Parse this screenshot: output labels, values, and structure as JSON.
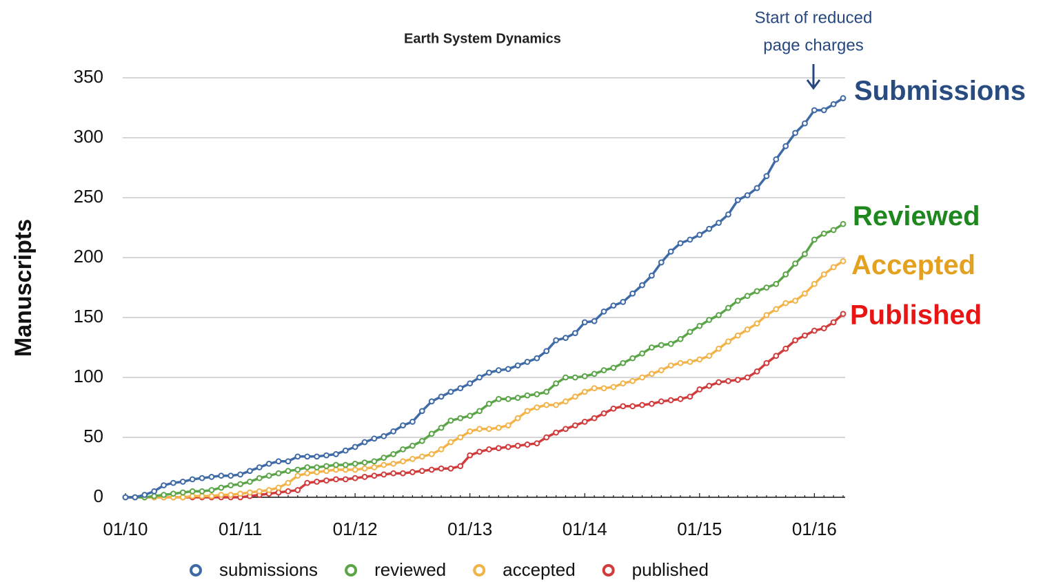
{
  "chart_data": {
    "type": "line",
    "title": "Earth System Dynamics",
    "y_label": "Manuscripts",
    "annotation": [
      "Start of reduced",
      "page charges"
    ],
    "annotation_color": "#27487e",
    "categories": [
      "01/10",
      null,
      null,
      null,
      null,
      null,
      null,
      null,
      null,
      null,
      null,
      null,
      "01/11",
      null,
      null,
      null,
      null,
      null,
      null,
      null,
      null,
      null,
      null,
      null,
      "01/12",
      null,
      null,
      null,
      null,
      null,
      null,
      null,
      null,
      null,
      null,
      null,
      "01/13",
      null,
      null,
      null,
      null,
      null,
      null,
      null,
      null,
      null,
      null,
      null,
      "01/14",
      null,
      null,
      null,
      null,
      null,
      null,
      null,
      null,
      null,
      null,
      null,
      "01/15",
      null,
      null,
      null,
      null,
      null,
      null,
      null,
      null,
      null,
      null,
      null,
      "01/16",
      null,
      null,
      null
    ],
    "ylim": [
      0,
      350
    ],
    "yticks": [
      0,
      50,
      100,
      150,
      200,
      250,
      300,
      350
    ],
    "grid": true,
    "legend": "bottom",
    "series": [
      {
        "name": "submissions",
        "end_label": "Submissions",
        "color": "#3e6aa6",
        "label_color": "#284b80",
        "values": [
          0,
          0,
          2,
          5,
          10,
          12,
          13,
          15,
          16,
          17,
          18,
          18,
          19,
          22,
          25,
          28,
          30,
          30,
          34,
          34,
          34,
          35,
          36,
          39,
          42,
          46,
          49,
          51,
          55,
          60,
          63,
          72,
          80,
          84,
          88,
          91,
          95,
          100,
          104,
          106,
          107,
          110,
          113,
          116,
          122,
          131,
          133,
          137,
          146,
          147,
          155,
          160,
          163,
          170,
          177,
          185,
          196,
          205,
          212,
          215,
          219,
          224,
          229,
          236,
          248,
          252,
          258,
          268,
          282,
          293,
          304,
          312,
          323,
          323,
          328,
          333
        ]
      },
      {
        "name": "reviewed",
        "end_label": "Reviewed",
        "color": "#5ba548",
        "label_color": "#1e871e",
        "values": [
          0,
          0,
          0,
          1,
          2,
          3,
          4,
          5,
          5,
          6,
          8,
          10,
          11,
          13,
          16,
          18,
          20,
          22,
          23,
          25,
          25,
          26,
          27,
          27,
          28,
          29,
          30,
          33,
          36,
          40,
          43,
          47,
          53,
          58,
          64,
          66,
          68,
          72,
          78,
          82,
          82,
          83,
          85,
          86,
          88,
          95,
          100,
          100,
          101,
          103,
          106,
          108,
          112,
          116,
          120,
          125,
          127,
          128,
          132,
          138,
          143,
          148,
          152,
          158,
          164,
          168,
          172,
          175,
          178,
          186,
          195,
          203,
          215,
          220,
          223,
          228
        ]
      },
      {
        "name": "accepted",
        "end_label": "Accepted",
        "color": "#f2b44a",
        "label_color": "#e3a11f",
        "values": [
          0,
          0,
          0,
          0,
          0,
          0,
          0,
          1,
          1,
          1,
          2,
          2,
          3,
          4,
          5,
          6,
          8,
          12,
          18,
          20,
          21,
          22,
          23,
          23,
          23,
          24,
          25,
          27,
          28,
          30,
          32,
          34,
          36,
          40,
          46,
          50,
          55,
          57,
          57,
          58,
          60,
          66,
          72,
          75,
          77,
          77,
          80,
          84,
          88,
          91,
          91,
          92,
          95,
          97,
          100,
          103,
          106,
          110,
          112,
          113,
          115,
          118,
          124,
          130,
          135,
          140,
          145,
          152,
          157,
          162,
          164,
          170,
          178,
          186,
          192,
          197
        ]
      },
      {
        "name": "published",
        "end_label": "Published",
        "color": "#d13b3b",
        "label_color": "#e81515",
        "values": [
          0,
          0,
          0,
          0,
          0,
          0,
          0,
          0,
          0,
          0,
          0,
          0,
          0,
          1,
          2,
          3,
          4,
          5,
          6,
          12,
          13,
          14,
          15,
          15,
          16,
          17,
          18,
          19,
          20,
          20,
          21,
          22,
          23,
          24,
          24,
          26,
          35,
          38,
          40,
          41,
          42,
          43,
          44,
          45,
          50,
          54,
          57,
          60,
          63,
          66,
          70,
          74,
          76,
          76,
          77,
          78,
          80,
          81,
          82,
          84,
          90,
          93,
          96,
          97,
          98,
          100,
          105,
          112,
          118,
          124,
          131,
          135,
          139,
          141,
          146,
          153
        ]
      }
    ]
  }
}
